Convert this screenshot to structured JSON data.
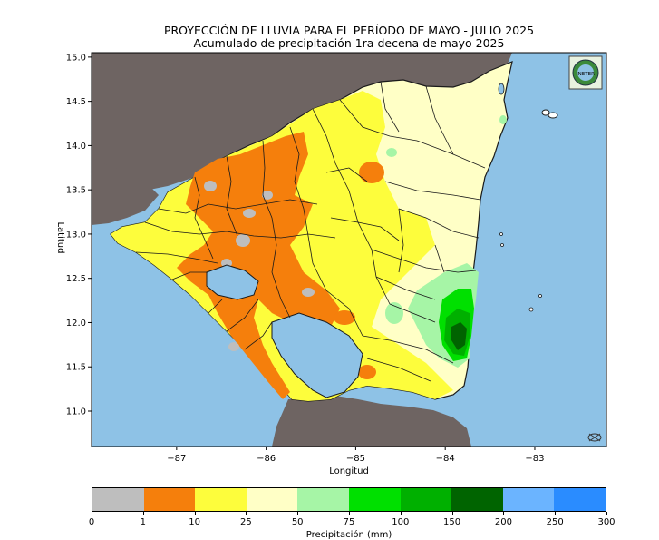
{
  "title": "PROYECCIÓN DE LLUVIA PARA EL PERÍODO DE MAYO - JULIO 2025",
  "subtitle": "Acumulado de precipitación 1ra decena de mayo 2025",
  "xlabel": "Longitud",
  "ylabel": "Latitud",
  "x_ticks": [
    "−87",
    "−86",
    "−85",
    "−84",
    "−83"
  ],
  "y_ticks": [
    "15.0",
    "14.5",
    "14.0",
    "13.5",
    "13.0",
    "12.5",
    "12.0",
    "11.5",
    "11.0"
  ],
  "map_extent": {
    "lon": [
      -87.95,
      -82.2
    ],
    "lat": [
      10.6,
      15.05
    ]
  },
  "colors": {
    "ocean": "#8ec2e6",
    "land_outside": "#6e6462",
    "boundary": "#1a1a1a"
  },
  "colorbar": {
    "title": "Precipitación (mm)",
    "bounds": [
      "0",
      "1",
      "10",
      "25",
      "50",
      "75",
      "100",
      "150",
      "200",
      "250",
      "300"
    ],
    "colors": [
      "#bebebe",
      "#f57f0c",
      "#fdfd3c",
      "#ffffc6",
      "#a6f5a6",
      "#00e000",
      "#00b000",
      "#006400",
      "#6bb4ff",
      "#2a8cff"
    ]
  },
  "logo": {
    "text": "INETER"
  }
}
